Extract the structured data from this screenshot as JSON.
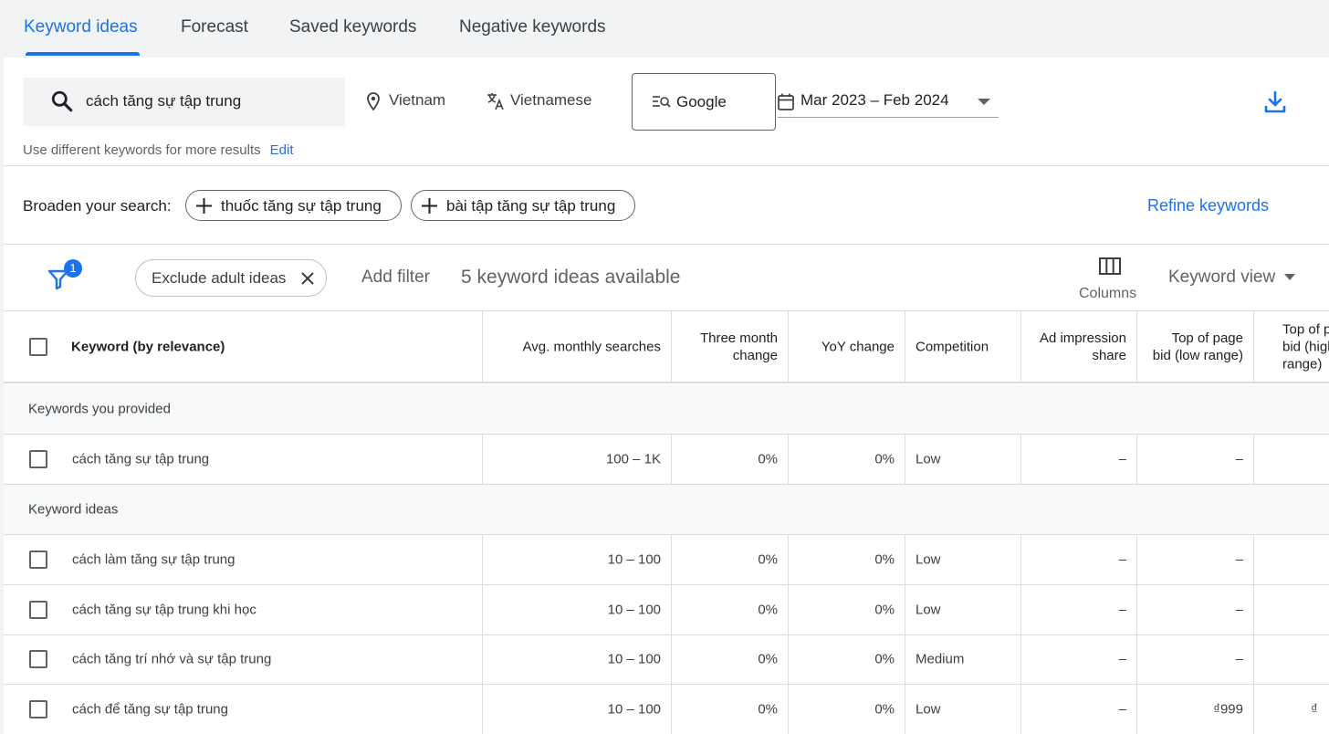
{
  "tabs": [
    {
      "label": "Keyword ideas",
      "active": true
    },
    {
      "label": "Forecast",
      "active": false
    },
    {
      "label": "Saved keywords",
      "active": false
    },
    {
      "label": "Negative keywords",
      "active": false
    }
  ],
  "search": {
    "query": "cách tăng sự tập trung",
    "location": "Vietnam",
    "language": "Vietnamese",
    "network": "Google",
    "date_range": "Mar 2023 – Feb 2024"
  },
  "hint": {
    "text": "Use different keywords for more results",
    "edit_label": "Edit"
  },
  "broaden": {
    "label": "Broaden your search:",
    "chips": [
      "thuốc tăng sự tập trung",
      "bài tập tăng sự tập trung"
    ],
    "refine_label": "Refine keywords"
  },
  "filterbar": {
    "filter_badge": "1",
    "exclude_chip": "Exclude adult ideas",
    "add_filter": "Add filter",
    "ideas_count": "5 keyword ideas available",
    "columns_label": "Columns",
    "view_label": "Keyword view"
  },
  "table": {
    "headers": {
      "keyword": "Keyword (by relevance)",
      "avg": "Avg. monthly searches",
      "three_month": "Three month change",
      "yoy": "YoY change",
      "competition": "Competition",
      "ad_share": "Ad impression share",
      "top_low": "Top of page bid (low range)",
      "top_high": "Top of page bid (high range)"
    },
    "group_provided": "Keywords you provided",
    "group_ideas": "Keyword ideas",
    "provided": [
      {
        "keyword": "cách tăng sự tập trung",
        "avg": "100 – 1K",
        "three_month": "0%",
        "yoy": "0%",
        "competition": "Low",
        "ad_share": "–",
        "top_low": "–",
        "top_high": ""
      }
    ],
    "ideas": [
      {
        "keyword": "cách làm tăng sự tập trung",
        "avg": "10 – 100",
        "three_month": "0%",
        "yoy": "0%",
        "competition": "Low",
        "ad_share": "–",
        "top_low": "–",
        "top_high": ""
      },
      {
        "keyword": "cách tăng sự tập trung khi học",
        "avg": "10 – 100",
        "three_month": "0%",
        "yoy": "0%",
        "competition": "Low",
        "ad_share": "–",
        "top_low": "–",
        "top_high": ""
      },
      {
        "keyword": "cách tăng trí nhớ và sự tập trung",
        "avg": "10 – 100",
        "three_month": "0%",
        "yoy": "0%",
        "competition": "Medium",
        "ad_share": "–",
        "top_low": "–",
        "top_high": ""
      },
      {
        "keyword": "cách để tăng sự tập trung",
        "avg": "10 – 100",
        "three_month": "0%",
        "yoy": "0%",
        "competition": "Low",
        "ad_share": "–",
        "top_low": "₫999",
        "top_high": "₫"
      }
    ]
  },
  "colors": {
    "accent": "#1a73e8",
    "text": "#202124",
    "muted": "#5f6368",
    "divider": "#dadce0",
    "background": "#f1f3f4"
  },
  "icons": [
    "search-icon",
    "location-pin-icon",
    "translate-icon",
    "search-network-icon",
    "calendar-icon",
    "download-icon",
    "plus-icon",
    "filter-icon",
    "close-icon",
    "columns-icon",
    "chevron-down-icon"
  ]
}
